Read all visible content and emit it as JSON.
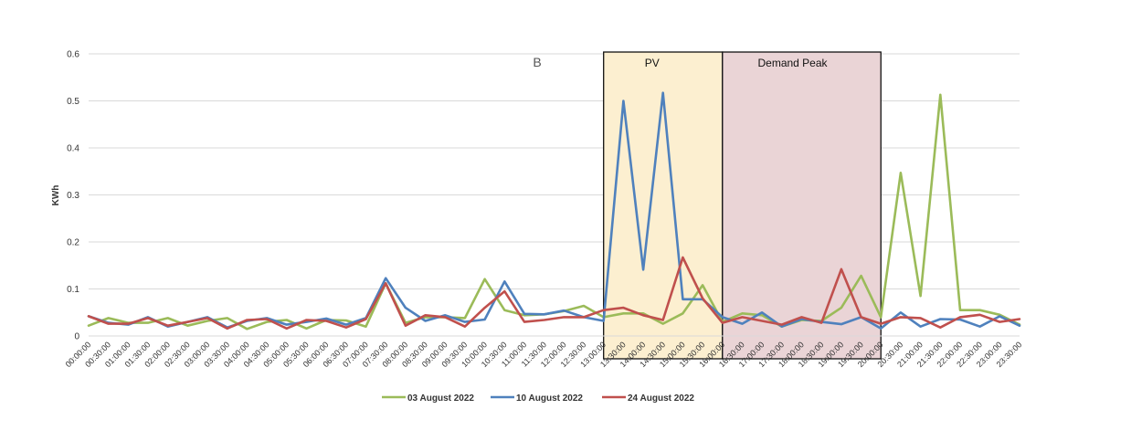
{
  "chart_data": {
    "type": "line",
    "ylabel": "KWh",
    "ylim": [
      0,
      0.6
    ],
    "yticks": [
      "0",
      "0.1",
      "0.2",
      "0.3",
      "0.4",
      "0.5",
      "0.6"
    ],
    "grid": true,
    "legend_position": "bottom",
    "panel_label": "B",
    "x": [
      "00:00:00",
      "00:30:00",
      "01:00:00",
      "01:30:00",
      "02:00:00",
      "02:30:00",
      "03:00:00",
      "03:30:00",
      "04:00:00",
      "04:30:00",
      "05:00:00",
      "05:30:00",
      "06:00:00",
      "06:30:00",
      "07:00:00",
      "07:30:00",
      "08:00:00",
      "08:30:00",
      "09:00:00",
      "09:30:00",
      "10:00:00",
      "10:30:00",
      "11:00:00",
      "11:30:00",
      "12:00:00",
      "12:30:00",
      "13:00:00",
      "13:30:00",
      "14:00:00",
      "14:30:00",
      "15:00:00",
      "15:30:00",
      "16:00:00",
      "16:30:00",
      "17:00:00",
      "17:30:00",
      "18:00:00",
      "18:30:00",
      "19:00:00",
      "19:30:00",
      "20:00:00",
      "20:30:00",
      "21:00:00",
      "21:30:00",
      "22:00:00",
      "22:30:00",
      "23:00:00",
      "23:30:00"
    ],
    "series": [
      {
        "name": "03 August 2022",
        "color": "#9bbb59",
        "values": [
          0.022,
          0.038,
          0.028,
          0.028,
          0.038,
          0.022,
          0.032,
          0.038,
          0.015,
          0.03,
          0.034,
          0.016,
          0.034,
          0.033,
          0.02,
          0.112,
          0.028,
          0.04,
          0.04,
          0.038,
          0.121,
          0.055,
          0.044,
          0.046,
          0.053,
          0.064,
          0.04,
          0.048,
          0.048,
          0.026,
          0.048,
          0.108,
          0.03,
          0.048,
          0.044,
          0.02,
          0.034,
          0.032,
          0.06,
          0.128,
          0.04,
          0.347,
          0.085,
          0.513,
          0.055,
          0.055,
          0.045,
          0.024
        ]
      },
      {
        "name": "10 August 2022",
        "color": "#4f81bd",
        "values": [
          0.042,
          0.028,
          0.024,
          0.04,
          0.02,
          0.03,
          0.04,
          0.018,
          0.032,
          0.038,
          0.024,
          0.03,
          0.037,
          0.024,
          0.038,
          0.123,
          0.06,
          0.032,
          0.044,
          0.03,
          0.035,
          0.116,
          0.047,
          0.046,
          0.054,
          0.04,
          0.032,
          0.5,
          0.141,
          0.517,
          0.078,
          0.078,
          0.04,
          0.026,
          0.05,
          0.02,
          0.036,
          0.03,
          0.025,
          0.04,
          0.016,
          0.05,
          0.02,
          0.036,
          0.035,
          0.02,
          0.042,
          0.022
        ]
      },
      {
        "name": "24 August 2022",
        "color": "#c0504d",
        "values": [
          0.042,
          0.026,
          0.026,
          0.038,
          0.022,
          0.03,
          0.038,
          0.016,
          0.034,
          0.036,
          0.016,
          0.034,
          0.032,
          0.018,
          0.036,
          0.112,
          0.022,
          0.044,
          0.04,
          0.02,
          0.06,
          0.095,
          0.03,
          0.034,
          0.04,
          0.04,
          0.055,
          0.06,
          0.044,
          0.034,
          0.167,
          0.08,
          0.028,
          0.04,
          0.032,
          0.024,
          0.04,
          0.028,
          0.142,
          0.04,
          0.026,
          0.04,
          0.038,
          0.018,
          0.04,
          0.045,
          0.03,
          0.036
        ]
      }
    ],
    "annotations": [
      {
        "label": "PV",
        "start_index": 26,
        "end_index": 32,
        "fill": "#fcefd0"
      },
      {
        "label": "Demand Peak",
        "start_index": 32,
        "end_index": 40,
        "fill": "#ead4d6"
      }
    ]
  }
}
